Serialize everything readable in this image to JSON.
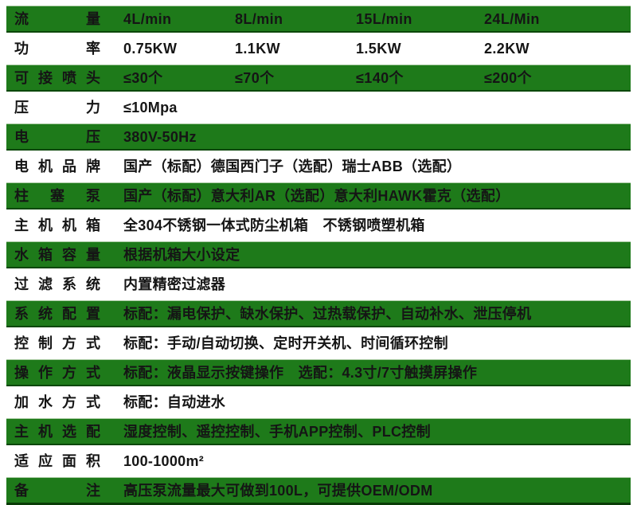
{
  "table": {
    "rows": [
      {
        "label": "流量",
        "variant": "green",
        "values": [
          "4L/min",
          "8L/min",
          "15L/min",
          "24L/Min"
        ]
      },
      {
        "label": "功率",
        "variant": "white",
        "values": [
          "0.75KW",
          "1.1KW",
          "1.5KW",
          "2.2KW"
        ]
      },
      {
        "label": "可接喷头",
        "variant": "green",
        "values": [
          "≤30个",
          "≤70个",
          "≤140个",
          "≤200个"
        ]
      },
      {
        "label": "压力",
        "variant": "white",
        "value": "≤10Mpa"
      },
      {
        "label": "电压",
        "variant": "green",
        "value": "380V-50Hz"
      },
      {
        "label": "电机品牌",
        "variant": "white",
        "value": "国产（标配）德国西门子（选配）瑞士ABB（选配）"
      },
      {
        "label": "柱塞泵",
        "variant": "green",
        "value": "国产（标配）意大利AR（选配）意大利HAWK霍克（选配）"
      },
      {
        "label": "主机机箱",
        "variant": "white",
        "value": "全304不锈钢一体式防尘机箱　不锈钢喷塑机箱"
      },
      {
        "label": "水箱容量",
        "variant": "green",
        "value": "根据机箱大小设定"
      },
      {
        "label": "过滤系统",
        "variant": "white",
        "value": "内置精密过滤器"
      },
      {
        "label": "系统配置",
        "variant": "green",
        "value": "标配：漏电保护、缺水保护、过热载保护、自动补水、泄压停机"
      },
      {
        "label": "控制方式",
        "variant": "white",
        "value": "标配：手动/自动切换、定时开关机、时间循环控制"
      },
      {
        "label": "操作方式",
        "variant": "green",
        "value": "标配：液晶显示按键操作　选配：4.3寸/7寸触摸屏操作"
      },
      {
        "label": "加水方式",
        "variant": "white",
        "value": "标配：自动进水"
      },
      {
        "label": "主机选配",
        "variant": "green",
        "value": "湿度控制、遥控控制、手机APP控制、PLC控制"
      },
      {
        "label": "适应面积",
        "variant": "white",
        "value": "100-1000m²"
      },
      {
        "label": "备注",
        "variant": "green",
        "value": "高压泵流量最大可做到100L，可提供OEM/ODM"
      }
    ],
    "colors": {
      "row_green": "#1e7a1a",
      "row_green_highlight": "#a9cba2",
      "row_green_shadow": "#0b4709",
      "text": "#151515",
      "background": "#ffffff"
    }
  }
}
